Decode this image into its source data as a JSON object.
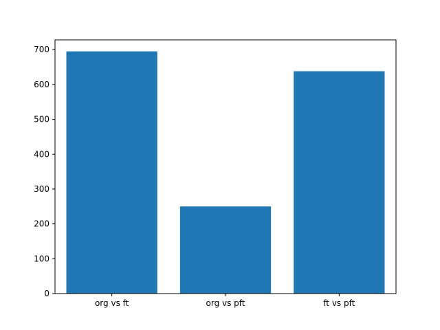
{
  "chart_data": {
    "type": "bar",
    "categories": [
      "org vs ft",
      "org vs pft",
      "ft vs pft"
    ],
    "values": [
      695,
      250,
      638
    ],
    "title": "",
    "xlabel": "",
    "ylabel": "",
    "ylim": [
      0,
      728
    ],
    "yticks": [
      0,
      100,
      200,
      300,
      400,
      500,
      600,
      700
    ],
    "bar_color": "#1f77b4",
    "axis_color": "#000000",
    "background_color": "#ffffff",
    "grid": false,
    "legend": "none",
    "bar_width_fraction": 0.8
  }
}
